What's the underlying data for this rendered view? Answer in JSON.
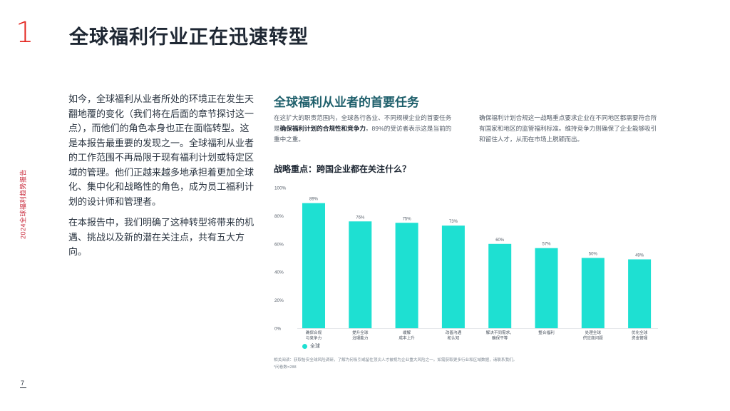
{
  "header": {
    "chapter_number": "1",
    "title": "全球福利行业正在迅速转型"
  },
  "sidebar": {
    "report_label": "2024全球福利趋势报告",
    "page_number": "7"
  },
  "intro": {
    "paragraph_1": "如今，全球福利从业者所处的环境正在发生天翻地覆的变化（我们将在后面的章节探讨这一点），而他们的角色本身也正在面临转型。这是本报告最重要的发现之一。全球福利从业者的工作范围不再局限于现有福利计划或特定区域的管理。他们正越来越多地承担着更加全球化、集中化和战略性的角色，成为员工福利计划的设计师和管理者。",
    "paragraph_2": "在本报告中，我们明确了这种转型将带来的机遇、挑战以及新的潜在关注点，共有五大方向。"
  },
  "section": {
    "title": "全球福利从业者的首要任务",
    "desc_left_pre": "在这扩大的职责范围内，全球各行各业、不同规模企业的首要任务是",
    "desc_left_bold": "确保福利计划的合规性和竞争力",
    "desc_left_post": "。89%的受访者表示这是当前的重中之重。",
    "desc_right": "确保福利计划合规这一战略重点要求企业在不同地区都需要符合所有国家和地区的监管福利标准。维持竞争力则确保了企业能够吸引和留住人才，从而在市场上脱颖而出。"
  },
  "chart_heading": "战略重点：跨国企业都在关注什么？",
  "chart_data": {
    "type": "bar",
    "categories": [
      [
        "确保合规",
        "与竞争力"
      ],
      [
        "提升全球",
        "治理能力"
      ],
      [
        "缓解",
        "成本上升"
      ],
      [
        "改善沟通",
        "和认知"
      ],
      [
        "解决不同需求，",
        "确保平等"
      ],
      [
        "整合福利"
      ],
      [
        "处理全球",
        "供应商问题"
      ],
      [
        "优化全球",
        "资金管理"
      ]
    ],
    "series": [
      {
        "name": "全球",
        "values": [
          89,
          76,
          75,
          73,
          60,
          57,
          50,
          49
        ]
      }
    ],
    "value_labels": [
      "89%",
      "76%",
      "75%",
      "73%",
      "60%",
      "57%",
      "50%",
      "49%"
    ],
    "y_ticks": [
      "0%",
      "20%",
      "40%",
      "60%",
      "80%",
      "100%"
    ],
    "ylim": [
      0,
      100
    ],
    "bar_color": "#1ee0d2",
    "legend": "bottom-left",
    "grid": false
  },
  "footnote": {
    "line_1": "相关阅读：获取怡安全球风险调研，了解为何吸引或留住顶尖人才被视为企业重大风险之一。如需获取更多行业和区域数据，请联系我们。",
    "line_2": "*问卷数=288"
  }
}
